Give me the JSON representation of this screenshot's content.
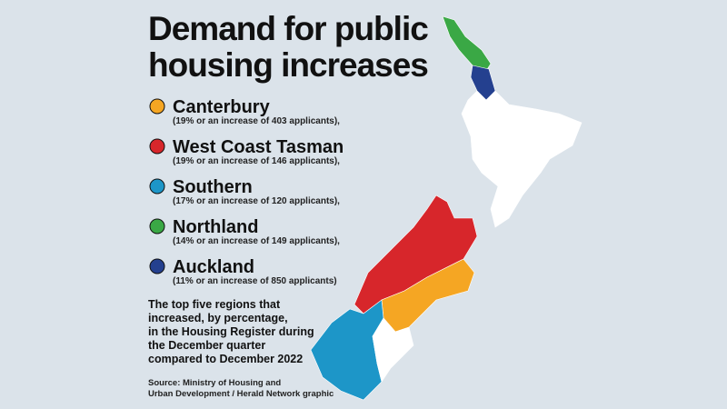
{
  "header": {
    "title_lines": [
      "Demand for public",
      "housing increases"
    ]
  },
  "legend": {
    "items": [
      {
        "name": "Canterbury",
        "detail": "(19% or an increase of 403 applicants),",
        "color": "#f5a623"
      },
      {
        "name": "West Coast Tasman",
        "detail": "(19% or an increase of 146 applicants),",
        "color": "#d7262b"
      },
      {
        "name": "Southern",
        "detail": "(17% or an increase of 120 applicants),",
        "color": "#1d96c8"
      },
      {
        "name": "Northland",
        "detail": "(14% or an increase of 149 applicants),",
        "color": "#3aa845"
      },
      {
        "name": "Auckland",
        "detail": "(11% or an increase of 850 applicants)",
        "color": "#24408f"
      }
    ]
  },
  "note_lines": [
    "The top five regions that",
    "increased, by percentage,",
    "in the Housing Register during",
    "the December quarter",
    "compared to December 2022"
  ],
  "source_lines": [
    "Source: Ministry of Housing and",
    "Urban Development / Herald Network graphic"
  ]
}
